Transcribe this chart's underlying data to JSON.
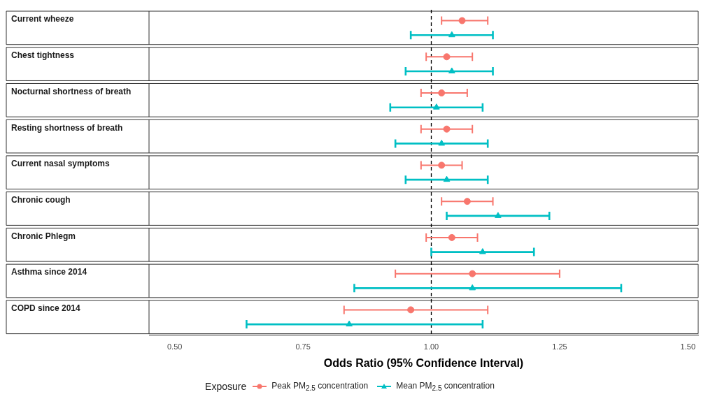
{
  "chart_data": {
    "type": "scatter",
    "orientation": "horizontal",
    "categories": [
      "Current wheeze",
      "Chest tightness",
      "Nocturnal shortness of breath",
      "Resting shortness of breath",
      "Current nasal symptoms",
      "Chronic cough",
      "Chronic Phlegm",
      "Asthma since 2014",
      "COPD since 2014"
    ],
    "series": [
      {
        "name": "Peak PM$_{2.5}$ concentration",
        "color": "#f8766d",
        "marker": "circle",
        "values": [
          1.06,
          1.03,
          1.02,
          1.03,
          1.02,
          1.07,
          1.04,
          1.08,
          0.96
        ],
        "errors": [
          [
            1.02,
            1.11
          ],
          [
            0.99,
            1.08
          ],
          [
            0.98,
            1.07
          ],
          [
            0.98,
            1.08
          ],
          [
            0.98,
            1.06
          ],
          [
            1.02,
            1.12
          ],
          [
            0.99,
            1.09
          ],
          [
            0.93,
            1.25
          ],
          [
            0.83,
            1.11
          ]
        ]
      },
      {
        "name": "Mean PM$_{2.5}$ concentration",
        "color": "#00bfc4",
        "marker": "triangle",
        "values": [
          1.04,
          1.04,
          1.01,
          1.02,
          1.03,
          1.13,
          1.1,
          1.08,
          0.84
        ],
        "errors": [
          [
            0.96,
            1.12
          ],
          [
            0.95,
            1.12
          ],
          [
            0.92,
            1.1
          ],
          [
            0.93,
            1.11
          ],
          [
            0.95,
            1.11
          ],
          [
            1.03,
            1.23
          ],
          [
            1.0,
            1.2
          ],
          [
            0.85,
            1.37
          ],
          [
            0.64,
            1.1
          ]
        ]
      }
    ],
    "xlim": [
      0.45,
      1.52
    ],
    "xticks": [
      {
        "value": 0.5,
        "label": "0.50"
      },
      {
        "value": 0.75,
        "label": "0.75"
      },
      {
        "value": 1,
        "label": "1.00"
      },
      {
        "value": 1.25,
        "label": "1.25"
      },
      {
        "value": 1.5,
        "label": "1.50"
      }
    ],
    "xlabel": "Odds Ratio (95% Confidence Interval)",
    "legend_title": "Exposure",
    "legend": "bottom",
    "grid": false,
    "ref_lines": [
      {
        "axis": "x",
        "value": 1,
        "color": "#000000",
        "line_style": "dashed"
      }
    ]
  }
}
